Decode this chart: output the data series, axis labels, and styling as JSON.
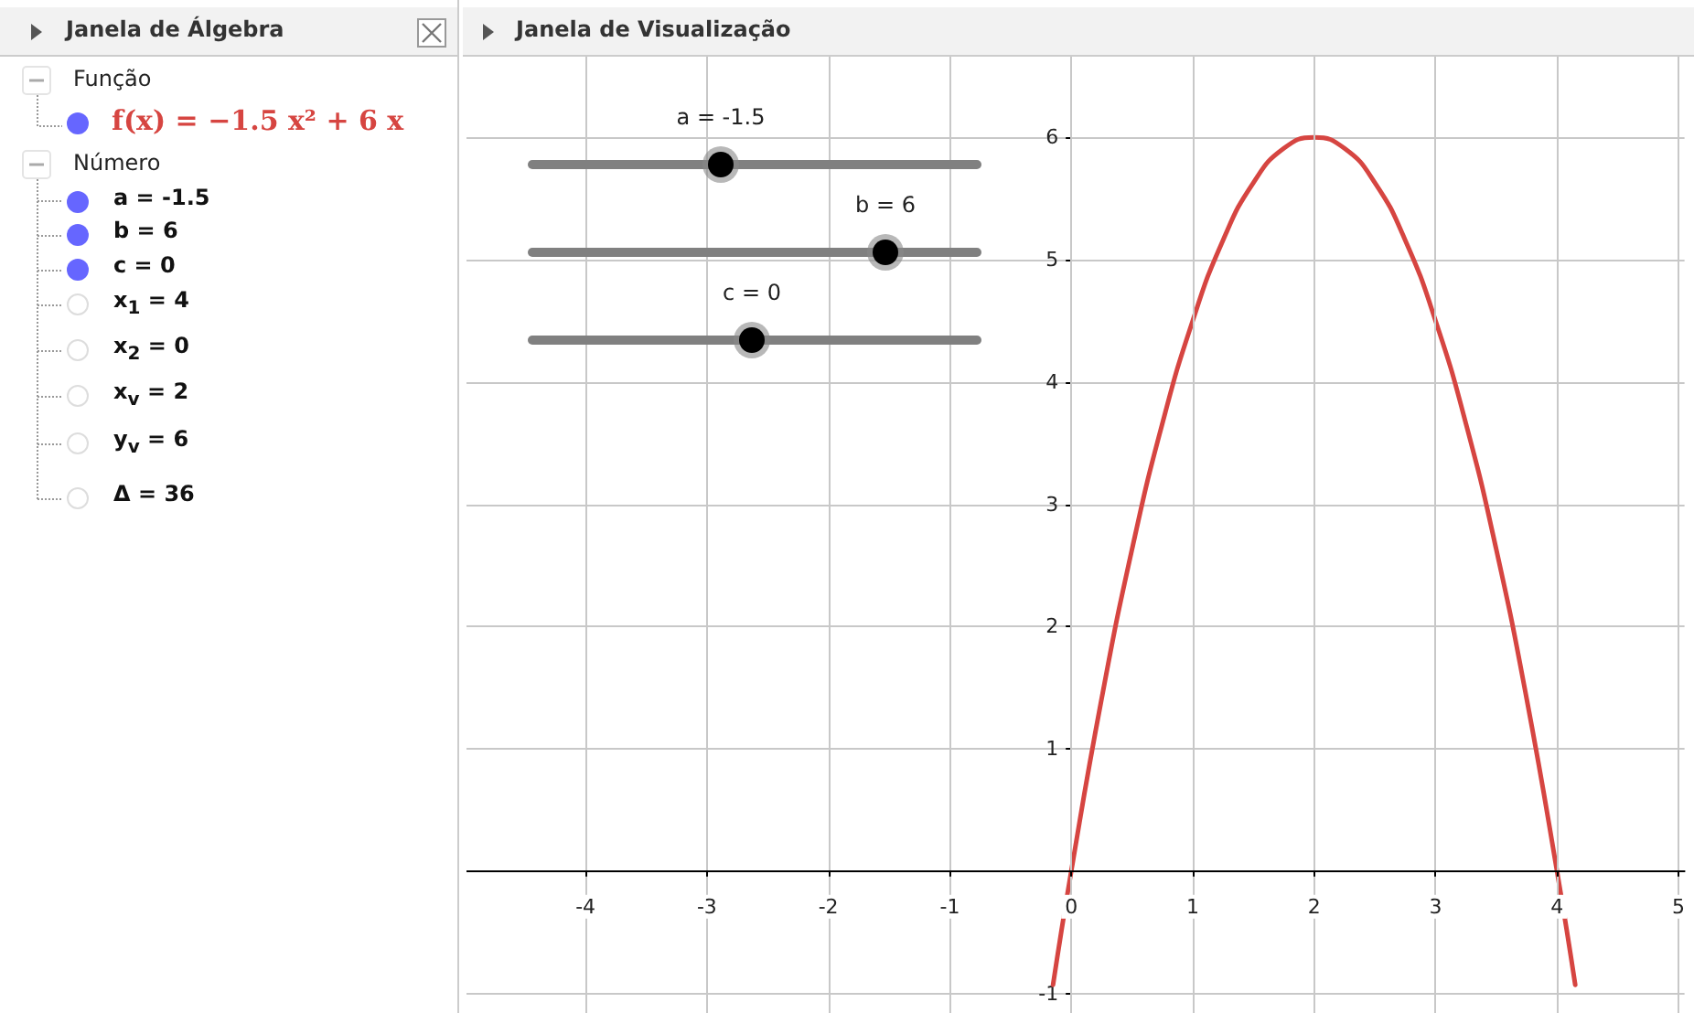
{
  "chart_data": {
    "type": "line",
    "x": [
      -0.15,
      0,
      0.25,
      0.5,
      0.75,
      1,
      1.25,
      1.5,
      1.75,
      2,
      2.25,
      2.5,
      2.75,
      3,
      3.25,
      3.5,
      3.75,
      4,
      4.15
    ],
    "series": [
      {
        "color": "#d64541",
        "values": [
          -0.93,
          0,
          1.41,
          2.63,
          3.66,
          4.5,
          5.16,
          5.63,
          5.91,
          6,
          5.91,
          5.63,
          5.16,
          4.5,
          3.66,
          2.63,
          1.41,
          0,
          -0.93
        ]
      }
    ],
    "xlim": [
      -4.98,
      5.05
    ],
    "ylim": [
      -1.16,
      6.66
    ],
    "xticks": [
      -4,
      -3,
      -2,
      -1,
      0,
      1,
      2,
      3,
      4,
      5
    ],
    "yticks": [
      -1,
      1,
      2,
      3,
      4,
      5,
      6
    ],
    "grid": true,
    "marker": "none",
    "line_style": "solid",
    "annotations": [
      "Janela de Álgebra",
      "Janela de Visualização",
      "Função",
      "f(x) = −1.5 x² + 6 x",
      "Número",
      "a = -1.5",
      "b = 6",
      "c = 0",
      "x$_{1}$ = 4",
      "x$_{2}$ = 0",
      "x$_{v}$ = 2",
      "y$_{v}$ = 6",
      "Δ = 36",
      "a = -1.5",
      "b = 6",
      "c = 0"
    ]
  }
}
